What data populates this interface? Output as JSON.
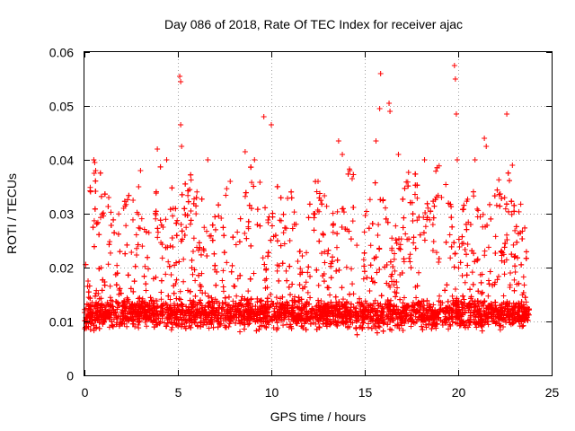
{
  "chart_data": {
    "type": "scatter",
    "title": "Day 086 of 2018, Rate Of TEC Index for receiver ajac",
    "xlabel": "GPS time / hours",
    "ylabel": "ROTI / TECUs",
    "xlim": [
      0,
      25
    ],
    "ylim": [
      0,
      0.06
    ],
    "xticks": [
      "0",
      "5",
      "10",
      "15",
      "20",
      "25"
    ],
    "yticks": [
      "0",
      "0.01",
      "0.02",
      "0.03",
      "0.04",
      "0.05",
      "0.06"
    ],
    "grid": true,
    "marker": "plus",
    "color": "#ff0000",
    "series": [
      {
        "name": "ROTI",
        "note": "dense cloud of ~6000 samples spanning 0-23.8 h, mostly 0.004-0.02 TECUs; listed points are the distinct outliers",
        "x_range": [
          0,
          23.8
        ],
        "y_typical": [
          0.004,
          0.02
        ],
        "outliers": [
          {
            "x": 0.5,
            "y": 0.04
          },
          {
            "x": 0.55,
            "y": 0.0395
          },
          {
            "x": 0.6,
            "y": 0.038
          },
          {
            "x": 1.3,
            "y": 0.033
          },
          {
            "x": 2.1,
            "y": 0.031
          },
          {
            "x": 2.9,
            "y": 0.035
          },
          {
            "x": 3.0,
            "y": 0.038
          },
          {
            "x": 3.9,
            "y": 0.042
          },
          {
            "x": 4.4,
            "y": 0.04
          },
          {
            "x": 5.1,
            "y": 0.0555
          },
          {
            "x": 5.15,
            "y": 0.0545
          },
          {
            "x": 5.15,
            "y": 0.0465
          },
          {
            "x": 5.2,
            "y": 0.0425
          },
          {
            "x": 6.6,
            "y": 0.04
          },
          {
            "x": 7.8,
            "y": 0.036
          },
          {
            "x": 8.6,
            "y": 0.0415
          },
          {
            "x": 9.1,
            "y": 0.04
          },
          {
            "x": 9.6,
            "y": 0.048
          },
          {
            "x": 10.0,
            "y": 0.0465
          },
          {
            "x": 12.5,
            "y": 0.036
          },
          {
            "x": 13.6,
            "y": 0.0435
          },
          {
            "x": 13.8,
            "y": 0.041
          },
          {
            "x": 14.2,
            "y": 0.038
          },
          {
            "x": 15.6,
            "y": 0.0435
          },
          {
            "x": 15.8,
            "y": 0.0495
          },
          {
            "x": 15.85,
            "y": 0.056
          },
          {
            "x": 16.3,
            "y": 0.0505
          },
          {
            "x": 16.35,
            "y": 0.049
          },
          {
            "x": 16.8,
            "y": 0.041
          },
          {
            "x": 18.2,
            "y": 0.04
          },
          {
            "x": 19.8,
            "y": 0.0575
          },
          {
            "x": 19.85,
            "y": 0.055
          },
          {
            "x": 19.9,
            "y": 0.0485
          },
          {
            "x": 19.95,
            "y": 0.04
          },
          {
            "x": 20.9,
            "y": 0.04
          },
          {
            "x": 21.4,
            "y": 0.044
          },
          {
            "x": 21.5,
            "y": 0.0425
          },
          {
            "x": 22.6,
            "y": 0.0485
          },
          {
            "x": 22.9,
            "y": 0.039
          }
        ]
      }
    ]
  }
}
